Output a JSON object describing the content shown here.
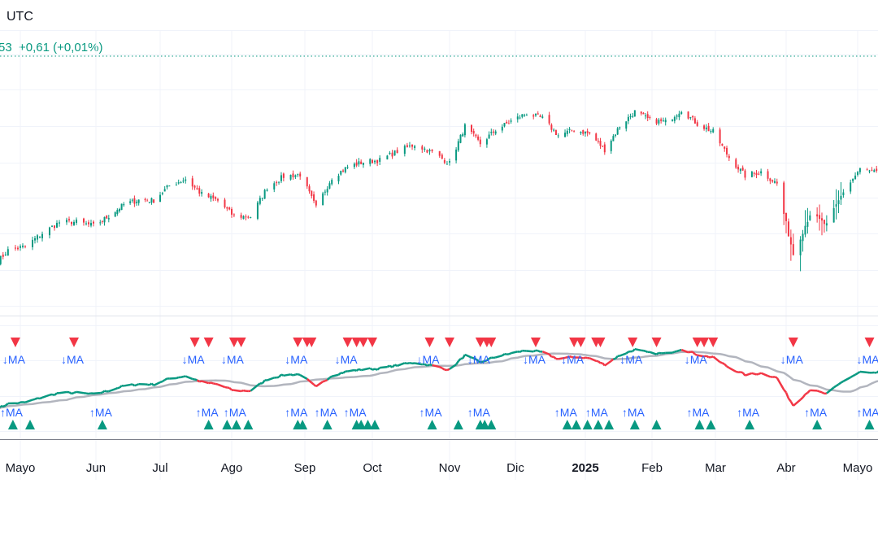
{
  "header": {
    "timezone": "UTC",
    "last_price_fragment": "53",
    "change": "+0,61 (+0,01%)"
  },
  "colors": {
    "up": "#089981",
    "down": "#f23645",
    "ma": "#b2b5be",
    "signal_text": "#2962ff",
    "grid": "#f0f3fa"
  },
  "x_axis": {
    "labels": [
      {
        "text": "Mayo",
        "date": "2024-05-01"
      },
      {
        "text": "Jun",
        "date": "2024-06-01"
      },
      {
        "text": "Jul",
        "date": "2024-07-01"
      },
      {
        "text": "Ago",
        "date": "2024-08-01"
      },
      {
        "text": "Sep",
        "date": "2024-09-01"
      },
      {
        "text": "Oct",
        "date": "2024-10-01"
      },
      {
        "text": "Nov",
        "date": "2024-11-01"
      },
      {
        "text": "Dic",
        "date": "2024-12-01"
      },
      {
        "text": "2025",
        "date": "2025-01-01",
        "bold": true
      },
      {
        "text": "Feb",
        "date": "2025-02-01"
      },
      {
        "text": "Mar",
        "date": "2025-03-01"
      },
      {
        "text": "Abr",
        "date": "2025-04-01"
      },
      {
        "text": "Mayo",
        "date": "2025-05-01"
      }
    ]
  },
  "chart_data": {
    "type": "candlestick",
    "note_series": "approximate weekly closes read from chart",
    "weekly_closes": [
      [
        "2024-04-19",
        4967
      ],
      [
        "2024-04-26",
        5100
      ],
      [
        "2024-05-03",
        5128
      ],
      [
        "2024-05-10",
        5223
      ],
      [
        "2024-05-17",
        5303
      ],
      [
        "2024-05-24",
        5305
      ],
      [
        "2024-05-31",
        5278
      ],
      [
        "2024-06-07",
        5347
      ],
      [
        "2024-06-14",
        5431
      ],
      [
        "2024-06-21",
        5464
      ],
      [
        "2024-06-28",
        5460
      ],
      [
        "2024-07-05",
        5567
      ],
      [
        "2024-07-12",
        5615
      ],
      [
        "2024-07-19",
        5505
      ],
      [
        "2024-07-26",
        5459
      ],
      [
        "2024-08-02",
        5346
      ],
      [
        "2024-08-09",
        5344
      ],
      [
        "2024-08-16",
        5554
      ],
      [
        "2024-08-23",
        5634
      ],
      [
        "2024-08-30",
        5648
      ],
      [
        "2024-09-06",
        5408
      ],
      [
        "2024-09-13",
        5626
      ],
      [
        "2024-09-20",
        5702
      ],
      [
        "2024-09-27",
        5738
      ],
      [
        "2024-10-04",
        5751
      ],
      [
        "2024-10-11",
        5815
      ],
      [
        "2024-10-18",
        5864
      ],
      [
        "2024-10-25",
        5808
      ],
      [
        "2024-11-01",
        5728
      ],
      [
        "2024-11-08",
        5995
      ],
      [
        "2024-11-15",
        5870
      ],
      [
        "2024-11-22",
        5969
      ],
      [
        "2024-11-29",
        6032
      ],
      [
        "2024-12-06",
        6090
      ],
      [
        "2024-12-13",
        6051
      ],
      [
        "2024-12-20",
        5930
      ],
      [
        "2024-12-27",
        5970
      ],
      [
        "2025-01-03",
        5942
      ],
      [
        "2025-01-10",
        5827
      ],
      [
        "2025-01-17",
        5997
      ],
      [
        "2025-01-24",
        6101
      ],
      [
        "2025-01-31",
        6040
      ],
      [
        "2025-02-07",
        6026
      ],
      [
        "2025-02-14",
        6115
      ],
      [
        "2025-02-21",
        6013
      ],
      [
        "2025-02-28",
        5955
      ],
      [
        "2025-03-07",
        5770
      ],
      [
        "2025-03-14",
        5639
      ],
      [
        "2025-03-21",
        5667
      ],
      [
        "2025-03-28",
        5581
      ],
      [
        "2025-04-04",
        5074
      ],
      [
        "2025-04-11",
        5363
      ],
      [
        "2025-04-18",
        5282
      ],
      [
        "2025-04-25",
        5525
      ],
      [
        "2025-05-02",
        5686
      ],
      [
        "2025-05-09",
        5660
      ],
      [
        "2025-05-13",
        5790
      ]
    ],
    "indicator": {
      "lines": [
        "price",
        "moving-average"
      ],
      "sell_label": "↓MA",
      "buy_label": "↑MA"
    },
    "sell_signals": [
      "2024-04-29",
      "2024-05-23",
      "2024-07-16",
      "2024-07-22",
      "2024-08-02",
      "2024-08-05",
      "2024-08-29",
      "2024-09-02",
      "2024-09-04",
      "2024-09-20",
      "2024-09-24",
      "2024-09-27",
      "2024-10-01",
      "2024-10-24",
      "2024-11-01",
      "2024-11-15",
      "2024-11-18",
      "2024-11-20",
      "2024-12-10",
      "2024-12-27",
      "2024-12-30",
      "2025-01-06",
      "2025-01-08",
      "2025-01-23",
      "2025-02-03",
      "2025-02-21",
      "2025-02-24",
      "2025-02-28",
      "2025-04-04",
      "2025-05-06"
    ],
    "buy_signals": [
      "2024-04-28",
      "2024-05-05",
      "2024-06-04",
      "2024-07-22",
      "2024-07-30",
      "2024-08-03",
      "2024-08-08",
      "2024-08-29",
      "2024-08-31",
      "2024-09-11",
      "2024-09-24",
      "2024-09-26",
      "2024-09-29",
      "2024-10-02",
      "2024-10-25",
      "2024-11-05",
      "2024-11-15",
      "2024-11-17",
      "2024-11-20",
      "2024-12-24",
      "2024-12-28",
      "2025-01-02",
      "2025-01-07",
      "2025-01-12",
      "2025-01-24",
      "2025-02-03",
      "2025-02-22",
      "2025-02-27",
      "2025-03-16",
      "2025-04-14",
      "2025-05-06"
    ],
    "grid": true
  }
}
